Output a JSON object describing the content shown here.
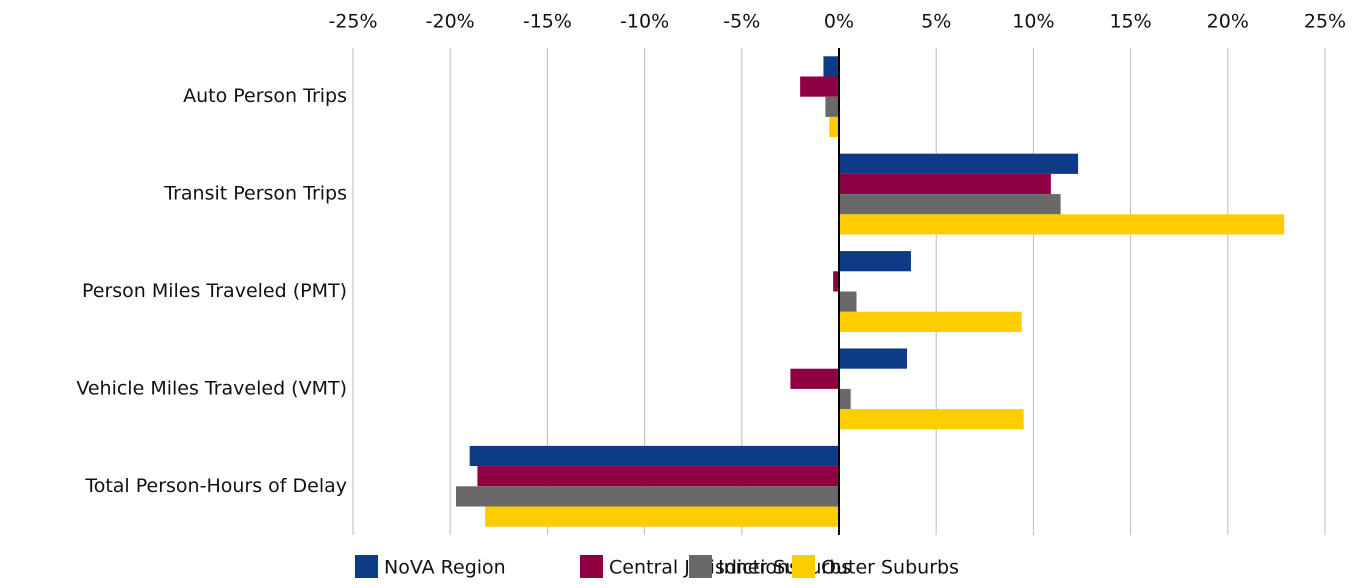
{
  "chart_data": {
    "type": "bar",
    "orientation": "horizontal",
    "categories": [
      "Auto Person Trips",
      "Transit Person Trips",
      "Person Miles Traveled (PMT)",
      "Vehicle Miles Traveled (VMT)",
      "Total Person-Hours of Delay"
    ],
    "series": [
      {
        "name": "NoVA Region",
        "color": "#0d3b86",
        "values": [
          -0.8,
          12.3,
          3.7,
          3.5,
          -19.0
        ]
      },
      {
        "name": "Central Jurisdictions",
        "color": "#8e0041",
        "values": [
          -2.0,
          10.9,
          -0.3,
          -2.5,
          -18.6
        ]
      },
      {
        "name": "Inner Suburbs",
        "color": "#6a6869",
        "values": [
          -0.7,
          11.4,
          0.9,
          0.6,
          -19.7
        ]
      },
      {
        "name": "Outer Suburbs",
        "color": "#ffcc00",
        "values": [
          -0.5,
          22.9,
          9.4,
          9.5,
          -18.2
        ]
      }
    ],
    "xlim": [
      -25,
      25
    ],
    "xticks": [
      {
        "value": -25,
        "label": "-25%"
      },
      {
        "value": -20,
        "label": "-20%"
      },
      {
        "value": -15,
        "label": "-15%"
      },
      {
        "value": -10,
        "label": "-10%"
      },
      {
        "value": -5,
        "label": "-5%"
      },
      {
        "value": 0,
        "label": "0%"
      },
      {
        "value": 5,
        "label": "5%"
      },
      {
        "value": 10,
        "label": "10%"
      },
      {
        "value": 15,
        "label": "15%"
      },
      {
        "value": 20,
        "label": "20%"
      },
      {
        "value": 25,
        "label": "25%"
      }
    ],
    "grid": true,
    "legend": "bottom"
  }
}
